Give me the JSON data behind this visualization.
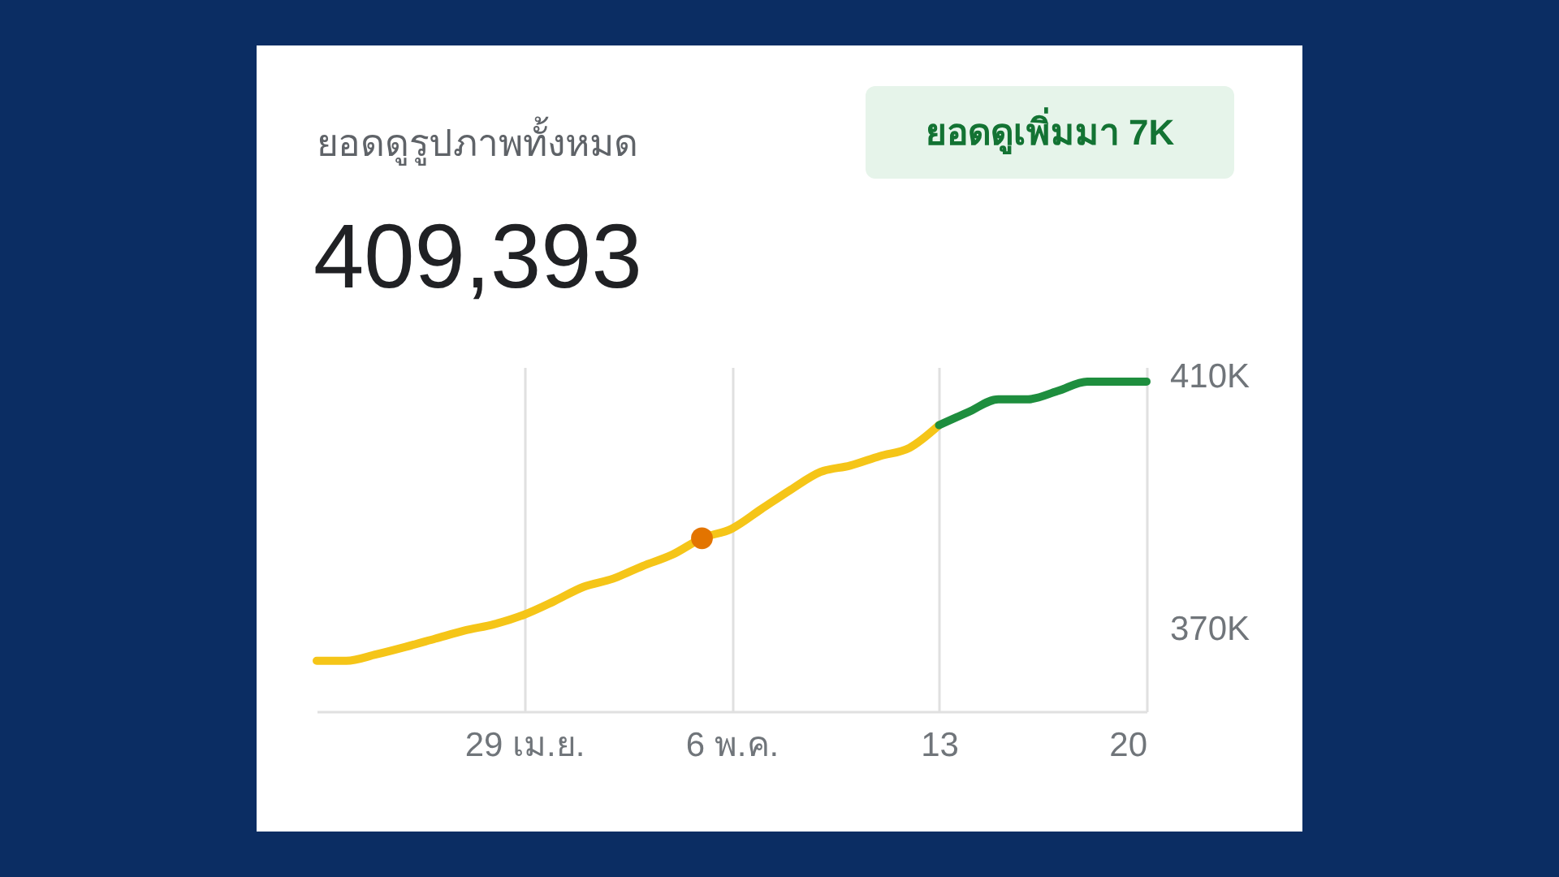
{
  "chart_data": {
    "type": "line",
    "title": "ยอดดูรูปภาพทั้งหมด",
    "subtitle": "409,393",
    "annotations": [
      "ยอดดูเพิ่มมา 7K"
    ],
    "xlim": [
      "--04-22",
      "--05-20"
    ],
    "xticks": [
      {
        "value": "--04-29",
        "label": "29 เม.ย."
      },
      {
        "value": "--05-06",
        "label": "6 พ.ค."
      },
      {
        "value": "--05-13",
        "label": "13"
      },
      {
        "value": "--05-20",
        "label": "20"
      }
    ],
    "ylim": [
      357000,
      411500
    ],
    "yticks": [
      {
        "value": 410000,
        "label": "410K"
      },
      {
        "value": 370000,
        "label": "370K"
      }
    ],
    "grid": "x",
    "line_style": "solid",
    "series": [
      {
        "color": "#f5c518",
        "x": [
          "--04-22",
          "--04-23",
          "--04-24",
          "--04-25",
          "--04-26",
          "--04-27",
          "--04-28",
          "--04-29",
          "--04-30",
          "--05-01",
          "--05-02",
          "--05-03",
          "--05-04",
          "--05-05",
          "--05-06",
          "--05-07",
          "--05-08",
          "--05-09",
          "--05-10",
          "--05-11",
          "--05-12",
          "--05-13"
        ],
        "values": [
          365000,
          365000,
          366000,
          367200,
          368500,
          369800,
          370800,
          372300,
          374400,
          376700,
          378000,
          380000,
          381800,
          384400,
          385900,
          389000,
          392100,
          394900,
          395900,
          397400,
          398700,
          402300
        ]
      },
      {
        "color": "#1e8e3e",
        "x": [
          "--05-13",
          "--05-14",
          "--05-15",
          "--05-16",
          "--05-17",
          "--05-18",
          "--05-19",
          "--05-20"
        ],
        "values": [
          402300,
          404400,
          406400,
          406400,
          407700,
          409200,
          409200,
          409200
        ]
      },
      {
        "type": "scatter",
        "color": "#e37400",
        "marker": "circle",
        "x": [
          "--05-05"
        ],
        "values": [
          384400
        ]
      }
    ]
  }
}
